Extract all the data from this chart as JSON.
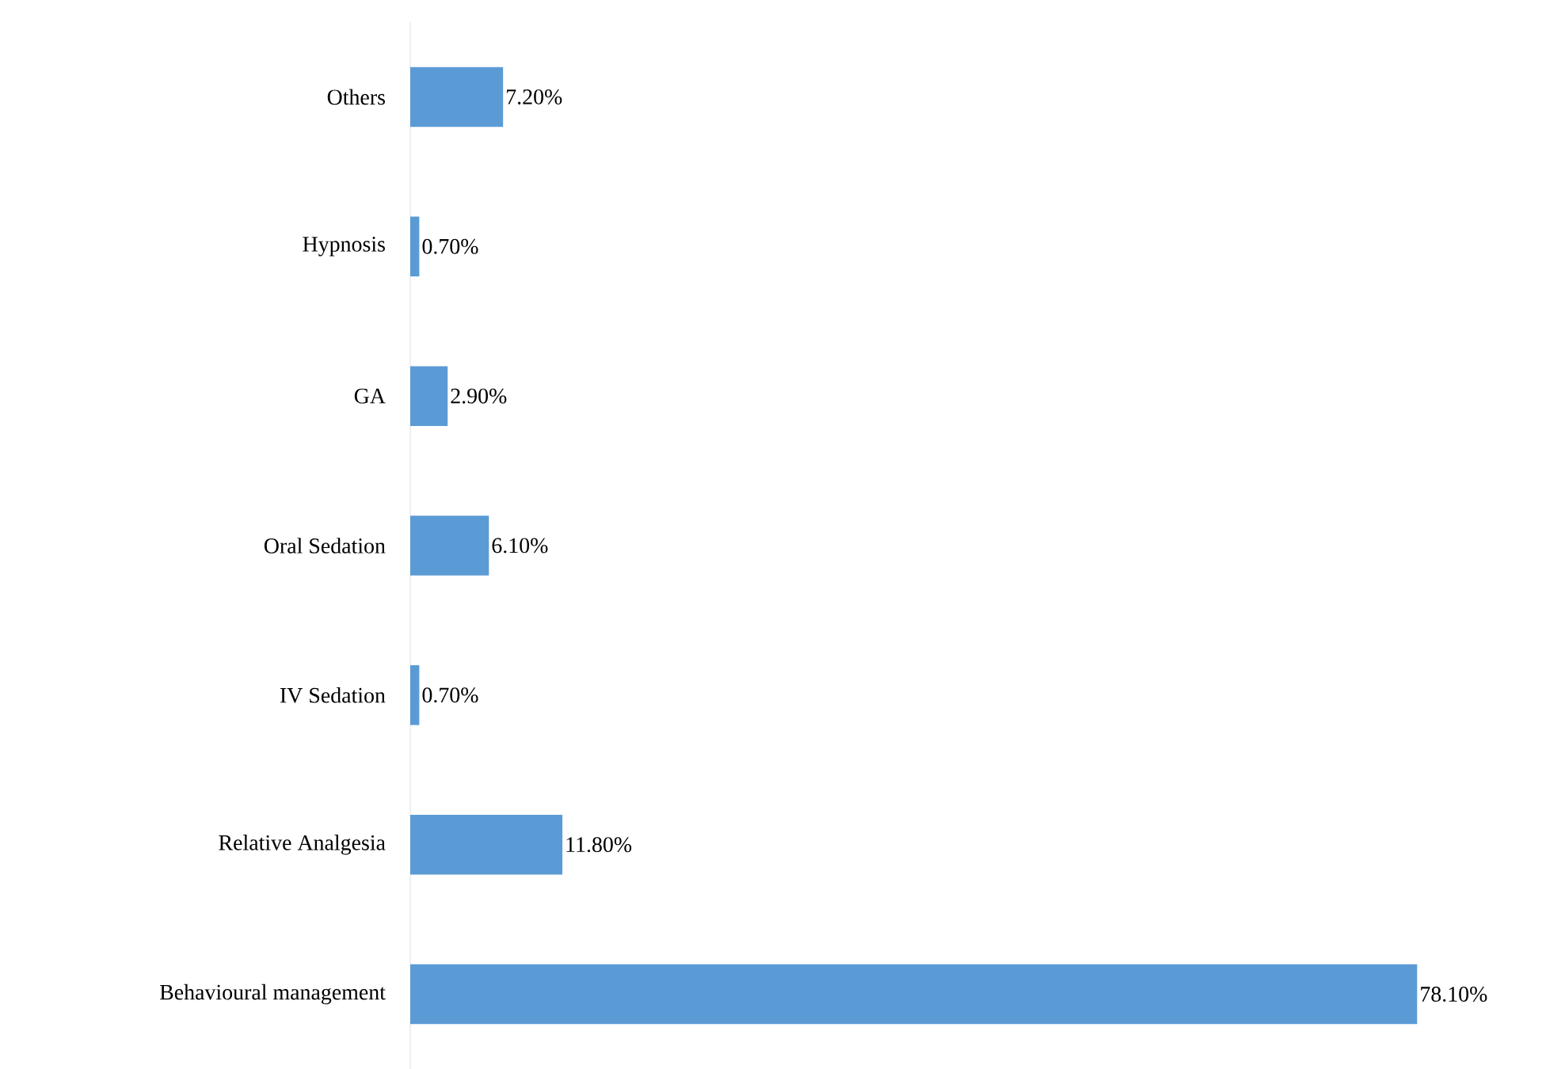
{
  "chart_data": {
    "type": "bar",
    "orientation": "horizontal",
    "categories": [
      "Others",
      "Hypnosis",
      "GA",
      "Oral Sedation",
      "IV Sedation",
      "Relative Analgesia",
      "Behavioural management"
    ],
    "values": [
      7.2,
      0.7,
      2.9,
      6.1,
      0.7,
      11.8,
      78.1
    ],
    "value_labels": [
      "7.20%",
      "0.70%",
      "2.90%",
      "6.10%",
      "0.70%",
      "11.80%",
      "78.10%"
    ],
    "color": "#5b9bd5"
  }
}
